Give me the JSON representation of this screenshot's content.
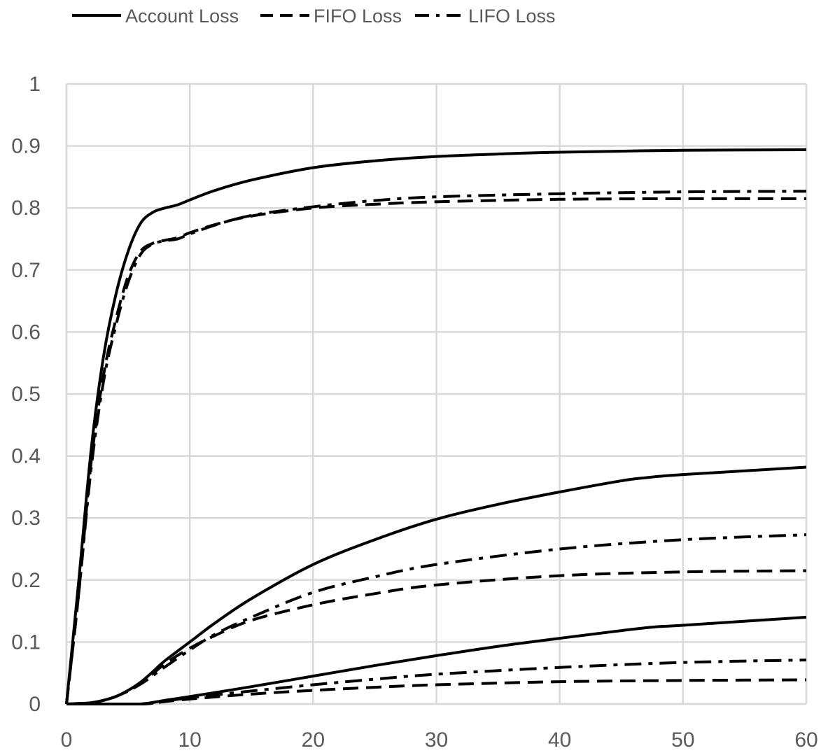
{
  "chart_data": {
    "type": "line",
    "title": "",
    "xlabel": "",
    "ylabel": "",
    "xlim": [
      0,
      60
    ],
    "ylim": [
      0,
      1
    ],
    "x_ticks": [
      "0",
      "10",
      "20",
      "30",
      "40",
      "50",
      "60"
    ],
    "y_ticks": [
      "0",
      "0.1",
      "0.2",
      "0.3",
      "0.4",
      "0.5",
      "0.6",
      "0.7",
      "0.8",
      "0.9",
      "1"
    ],
    "grid": true,
    "legend_position": "top-left",
    "legend": [
      {
        "name": "Account Loss",
        "style": "solid"
      },
      {
        "name": "FIFO Loss",
        "style": "dashed"
      },
      {
        "name": "LIFO Loss",
        "style": "dashdot"
      }
    ],
    "series": [
      {
        "group": "high",
        "name": "Account Loss",
        "style": "solid",
        "points": [
          [
            0,
            0
          ],
          [
            1,
            0.2
          ],
          [
            2,
            0.41
          ],
          [
            3,
            0.56
          ],
          [
            4,
            0.66
          ],
          [
            5,
            0.73
          ],
          [
            6,
            0.775
          ],
          [
            7,
            0.793
          ],
          [
            8,
            0.8
          ],
          [
            9,
            0.805
          ],
          [
            10,
            0.813
          ],
          [
            12,
            0.828
          ],
          [
            15,
            0.845
          ],
          [
            20,
            0.865
          ],
          [
            25,
            0.876
          ],
          [
            30,
            0.883
          ],
          [
            35,
            0.887
          ],
          [
            40,
            0.89
          ],
          [
            50,
            0.893
          ],
          [
            60,
            0.894
          ]
        ]
      },
      {
        "group": "high",
        "name": "FIFO Loss",
        "style": "dashed",
        "points": [
          [
            0,
            0
          ],
          [
            1,
            0.18
          ],
          [
            2,
            0.39
          ],
          [
            3,
            0.53
          ],
          [
            4,
            0.62
          ],
          [
            5,
            0.69
          ],
          [
            6,
            0.73
          ],
          [
            7,
            0.743
          ],
          [
            8,
            0.748
          ],
          [
            9,
            0.752
          ],
          [
            10,
            0.76
          ],
          [
            12,
            0.773
          ],
          [
            15,
            0.787
          ],
          [
            20,
            0.8
          ],
          [
            25,
            0.806
          ],
          [
            30,
            0.81
          ],
          [
            40,
            0.814
          ],
          [
            50,
            0.815
          ],
          [
            60,
            0.815
          ]
        ]
      },
      {
        "group": "high",
        "name": "LIFO Loss",
        "style": "dashdot",
        "points": [
          [
            0,
            0
          ],
          [
            1,
            0.18
          ],
          [
            2,
            0.38
          ],
          [
            3,
            0.52
          ],
          [
            4,
            0.61
          ],
          [
            5,
            0.68
          ],
          [
            6,
            0.725
          ],
          [
            7,
            0.742
          ],
          [
            8,
            0.747
          ],
          [
            9,
            0.75
          ],
          [
            10,
            0.758
          ],
          [
            12,
            0.772
          ],
          [
            15,
            0.788
          ],
          [
            20,
            0.802
          ],
          [
            25,
            0.812
          ],
          [
            30,
            0.818
          ],
          [
            40,
            0.823
          ],
          [
            50,
            0.826
          ],
          [
            60,
            0.827
          ]
        ]
      },
      {
        "group": "mid",
        "name": "Account Loss",
        "style": "solid",
        "points": [
          [
            0,
            0
          ],
          [
            1,
            0.001
          ],
          [
            2,
            0.002
          ],
          [
            3,
            0.006
          ],
          [
            4,
            0.012
          ],
          [
            5,
            0.022
          ],
          [
            6,
            0.035
          ],
          [
            7,
            0.052
          ],
          [
            8,
            0.07
          ],
          [
            10,
            0.1
          ],
          [
            12,
            0.13
          ],
          [
            15,
            0.17
          ],
          [
            20,
            0.225
          ],
          [
            25,
            0.265
          ],
          [
            30,
            0.298
          ],
          [
            35,
            0.322
          ],
          [
            40,
            0.342
          ],
          [
            45,
            0.36
          ],
          [
            47,
            0.365
          ],
          [
            50,
            0.37
          ],
          [
            60,
            0.382
          ]
        ]
      },
      {
        "group": "mid",
        "name": "FIFO Loss",
        "style": "dashed",
        "points": [
          [
            0,
            0
          ],
          [
            2,
            0.002
          ],
          [
            4,
            0.012
          ],
          [
            6,
            0.033
          ],
          [
            8,
            0.065
          ],
          [
            10,
            0.09
          ],
          [
            12,
            0.11
          ],
          [
            15,
            0.135
          ],
          [
            20,
            0.16
          ],
          [
            25,
            0.178
          ],
          [
            30,
            0.192
          ],
          [
            40,
            0.207
          ],
          [
            50,
            0.213
          ],
          [
            60,
            0.215
          ]
        ]
      },
      {
        "group": "mid",
        "name": "LIFO Loss",
        "style": "dashdot",
        "points": [
          [
            0,
            0
          ],
          [
            2,
            0.002
          ],
          [
            4,
            0.012
          ],
          [
            6,
            0.032
          ],
          [
            8,
            0.06
          ],
          [
            10,
            0.087
          ],
          [
            12,
            0.112
          ],
          [
            15,
            0.14
          ],
          [
            20,
            0.18
          ],
          [
            25,
            0.205
          ],
          [
            30,
            0.225
          ],
          [
            40,
            0.25
          ],
          [
            50,
            0.265
          ],
          [
            60,
            0.273
          ]
        ]
      },
      {
        "group": "low",
        "name": "Account Loss",
        "style": "solid",
        "points": [
          [
            0,
            0
          ],
          [
            3,
            0.0
          ],
          [
            6,
            0.0
          ],
          [
            8,
            0.006
          ],
          [
            10,
            0.012
          ],
          [
            15,
            0.028
          ],
          [
            20,
            0.045
          ],
          [
            25,
            0.062
          ],
          [
            30,
            0.078
          ],
          [
            35,
            0.093
          ],
          [
            40,
            0.106
          ],
          [
            47,
            0.123
          ],
          [
            50,
            0.127
          ],
          [
            60,
            0.14
          ]
        ]
      },
      {
        "group": "low",
        "name": "FIFO Loss",
        "style": "dashed",
        "points": [
          [
            0,
            0
          ],
          [
            6,
            0.0
          ],
          [
            8,
            0.004
          ],
          [
            10,
            0.008
          ],
          [
            15,
            0.016
          ],
          [
            20,
            0.022
          ],
          [
            25,
            0.027
          ],
          [
            30,
            0.031
          ],
          [
            40,
            0.036
          ],
          [
            50,
            0.038
          ],
          [
            60,
            0.039
          ]
        ]
      },
      {
        "group": "low",
        "name": "LIFO Loss",
        "style": "dashdot",
        "points": [
          [
            0,
            0
          ],
          [
            6,
            0.0
          ],
          [
            8,
            0.005
          ],
          [
            10,
            0.01
          ],
          [
            15,
            0.021
          ],
          [
            20,
            0.031
          ],
          [
            25,
            0.04
          ],
          [
            30,
            0.048
          ],
          [
            40,
            0.059
          ],
          [
            50,
            0.067
          ],
          [
            60,
            0.071
          ]
        ]
      }
    ]
  }
}
